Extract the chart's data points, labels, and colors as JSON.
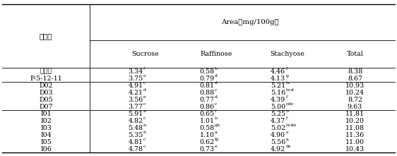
{
  "col1_header": "계통명",
  "area_header": "Area（mg/100g）",
  "sub_headers": [
    "Sucrose",
    "Raffinose",
    "Stachyose",
    "Total"
  ],
  "ref_rows": [
    [
      "팥달콩",
      "3.34",
      "f",
      "0.58",
      "b",
      "4.46",
      "f",
      "8.38"
    ],
    [
      "P-5-12-11",
      "3.75",
      "e",
      "0.79",
      "d",
      "4.13",
      "g",
      "8.67"
    ]
  ],
  "group1_rows": [
    [
      "D02",
      "4.91",
      "c",
      "0.81",
      "d",
      "5.21",
      "bc",
      "10.93"
    ],
    [
      "D03",
      "4.21",
      "d",
      "0.88",
      "c",
      "5.16",
      "bcd",
      "10.24"
    ],
    [
      "D05",
      "3.56",
      "e",
      "0.77",
      "d",
      "4.39",
      "f",
      "8.72"
    ],
    [
      "D07",
      "3.77",
      "c",
      "0.86",
      "c",
      "5.00",
      "cde",
      "9.63"
    ]
  ],
  "group2_rows": [
    [
      "I01",
      "5.91",
      "a",
      "0.65",
      "f",
      "5.25",
      "b",
      "11.81"
    ],
    [
      "I02",
      "4.82",
      "c",
      "1.01",
      "b",
      "4.37",
      "f",
      "10.20"
    ],
    [
      "I03",
      "5.48",
      "b",
      "0.58",
      "gh",
      "5.02",
      "bcde",
      "11.08"
    ],
    [
      "I04",
      "5.35",
      "b",
      "1.10",
      "a",
      "4.90",
      "e",
      "11.36"
    ],
    [
      "I05",
      "4.81",
      "c",
      "0.62",
      "fg",
      "5.56",
      "a",
      "11.00"
    ],
    [
      "I06",
      "4.78",
      "c",
      "0.73",
      "e",
      "4.92",
      "de",
      "10.43"
    ]
  ],
  "font_size": 6.8,
  "sup_font_size": 4.5,
  "font_family": "DejaVu Serif"
}
